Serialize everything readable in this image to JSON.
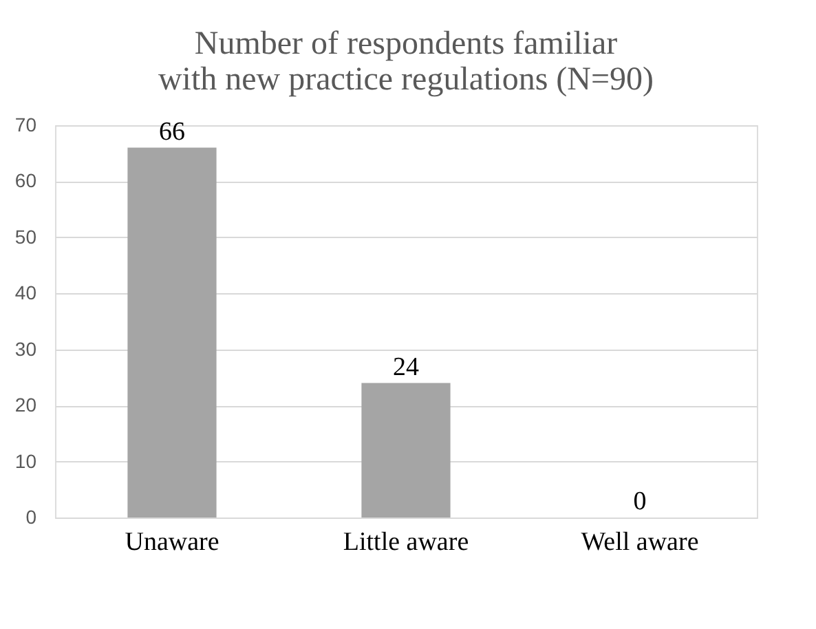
{
  "chart_data": {
    "type": "bar",
    "title": "Number of respondents familiar with new practice regulations (N=90)",
    "categories": [
      "Unaware",
      "Little aware",
      "Well aware"
    ],
    "values": [
      66,
      24,
      0
    ],
    "color": "#a5a5a5",
    "ylim": [
      0,
      70
    ],
    "yticks": [
      0,
      10,
      20,
      30,
      40,
      50,
      60,
      70
    ],
    "grid": "y",
    "data_labels": true
  }
}
